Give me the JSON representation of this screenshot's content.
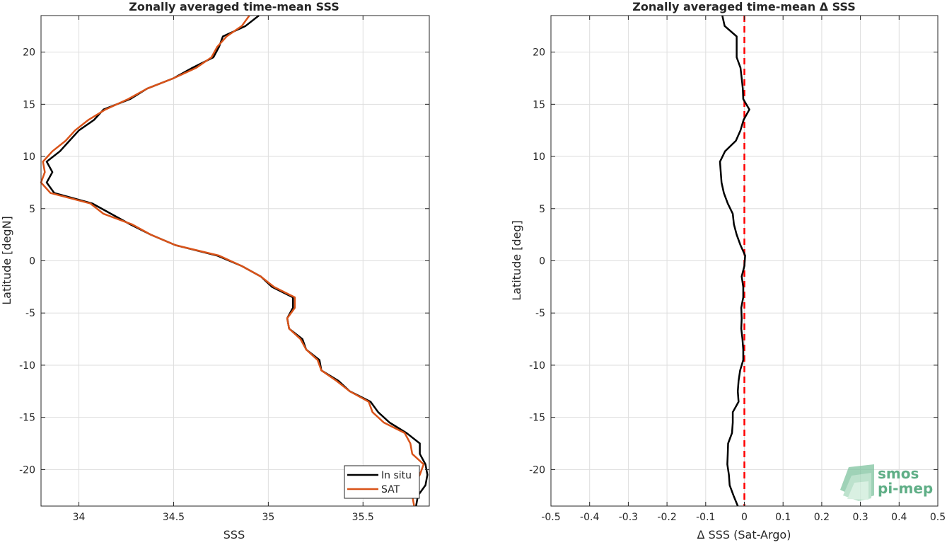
{
  "chart_data": [
    {
      "type": "line",
      "title": "Zonally averaged time-mean SSS",
      "xlabel": "SSS",
      "ylabel": "Latitude [degN]",
      "xlim": [
        33.8,
        35.85
      ],
      "ylim": [
        -23.5,
        23.5
      ],
      "xticks": [
        34,
        34.5,
        35,
        35.5
      ],
      "yticks": [
        20,
        15,
        10,
        5,
        0,
        -5,
        -10,
        -15,
        -20
      ],
      "grid": true,
      "legend": "bottom-right",
      "series": [
        {
          "name": "In situ",
          "color": "#000000",
          "lat": [
            23.5,
            22.5,
            21.5,
            20.5,
            19.5,
            18.5,
            17.5,
            16.5,
            15.5,
            14.5,
            13.5,
            12.5,
            11.5,
            10.5,
            9.5,
            8.5,
            7.5,
            6.5,
            5.5,
            4.5,
            3.5,
            2.5,
            1.5,
            0.5,
            -0.5,
            -1.5,
            -2.5,
            -3.5,
            -4.5,
            -5.5,
            -6.5,
            -7.5,
            -8.5,
            -9.5,
            -10.5,
            -11.5,
            -12.5,
            -13.5,
            -14.5,
            -15.5,
            -16.5,
            -17.5,
            -18.5,
            -19.5,
            -20.5,
            -21.5,
            -22.5,
            -23.5
          ],
          "values": [
            34.95,
            34.88,
            34.76,
            34.74,
            34.71,
            34.6,
            34.5,
            34.36,
            34.27,
            34.13,
            34.08,
            34.0,
            33.95,
            33.9,
            33.83,
            33.86,
            33.83,
            33.87,
            34.07,
            34.17,
            34.27,
            34.38,
            34.51,
            34.73,
            34.86,
            34.96,
            35.02,
            35.13,
            35.13,
            35.1,
            35.11,
            35.18,
            35.2,
            35.27,
            35.28,
            35.37,
            35.43,
            35.54,
            35.58,
            35.64,
            35.73,
            35.8,
            35.8,
            35.83,
            35.84,
            35.83,
            35.79,
            35.78
          ]
        },
        {
          "name": "SAT",
          "color": "#d95319",
          "lat": [
            23.5,
            22.5,
            21.5,
            20.5,
            19.5,
            18.5,
            17.5,
            16.5,
            15.5,
            14.5,
            13.5,
            12.5,
            11.5,
            10.5,
            9.5,
            8.5,
            7.5,
            6.5,
            5.5,
            4.5,
            3.5,
            2.5,
            1.5,
            0.5,
            -0.5,
            -1.5,
            -2.5,
            -3.5,
            -4.5,
            -5.5,
            -6.5,
            -7.5,
            -8.5,
            -9.5,
            -10.5,
            -11.5,
            -12.5,
            -13.5,
            -14.5,
            -15.5,
            -16.5,
            -17.5,
            -18.5,
            -19.5,
            -20.5,
            -21.5,
            -22.5,
            -23.5
          ],
          "values": [
            34.9,
            34.86,
            34.78,
            34.73,
            34.7,
            34.62,
            34.5,
            34.36,
            34.26,
            34.14,
            34.05,
            33.98,
            33.93,
            33.86,
            33.81,
            33.82,
            33.8,
            33.85,
            34.06,
            34.13,
            34.28,
            34.38,
            34.51,
            34.74,
            34.86,
            34.96,
            35.03,
            35.14,
            35.14,
            35.1,
            35.11,
            35.17,
            35.2,
            35.26,
            35.28,
            35.36,
            35.43,
            35.53,
            35.55,
            35.61,
            35.72,
            35.75,
            35.76,
            35.82,
            35.8,
            35.77,
            35.76,
            35.77
          ]
        }
      ]
    },
    {
      "type": "line",
      "title": "Zonally averaged time-mean Δ SSS",
      "xlabel": "Δ SSS (Sat-Argo)",
      "ylabel": "Latitude [deg]",
      "xlim": [
        -0.5,
        0.5
      ],
      "ylim": [
        -23.5,
        23.5
      ],
      "xticks": [
        -0.5,
        -0.4,
        -0.3,
        -0.2,
        -0.1,
        0,
        0.1,
        0.2,
        0.3,
        0.4,
        0.5
      ],
      "yticks": [
        20,
        15,
        10,
        5,
        0,
        -5,
        -10,
        -15,
        -20
      ],
      "grid": true,
      "zero_line_color": "#ff0000",
      "series": [
        {
          "name": "",
          "color": "#000000",
          "lat": [
            23.5,
            22.5,
            21.5,
            20.5,
            19.5,
            18.5,
            17.5,
            16.5,
            15.5,
            14.5,
            13.5,
            12.5,
            11.5,
            10.5,
            9.5,
            8.5,
            7.5,
            6.5,
            5.5,
            4.5,
            3.5,
            2.5,
            1.5,
            0.5,
            -0.5,
            -1.5,
            -2.5,
            -3.5,
            -4.5,
            -5.5,
            -6.5,
            -7.5,
            -8.5,
            -9.5,
            -10.5,
            -11.5,
            -12.5,
            -13.5,
            -14.5,
            -15.5,
            -16.5,
            -17.5,
            -18.5,
            -19.5,
            -20.5,
            -21.5,
            -22.5,
            -23.5
          ],
          "values": [
            -0.057,
            -0.051,
            -0.02,
            -0.02,
            -0.02,
            -0.01,
            -0.007,
            -0.004,
            -0.003,
            0.013,
            -0.002,
            -0.01,
            -0.022,
            -0.05,
            -0.063,
            -0.061,
            -0.059,
            -0.053,
            -0.043,
            -0.03,
            -0.027,
            -0.02,
            -0.01,
            0.002,
            0.0,
            -0.007,
            -0.003,
            -0.003,
            -0.008,
            -0.007,
            -0.008,
            -0.005,
            -0.003,
            -0.003,
            -0.011,
            -0.015,
            -0.017,
            -0.015,
            -0.03,
            -0.03,
            -0.032,
            -0.042,
            -0.043,
            -0.044,
            -0.04,
            -0.038,
            -0.028,
            -0.017
          ]
        }
      ]
    }
  ],
  "legend": {
    "insitu_label": "In situ",
    "sat_label": "SAT"
  },
  "logo": {
    "line1": "smos",
    "line2": "pi-mep"
  }
}
